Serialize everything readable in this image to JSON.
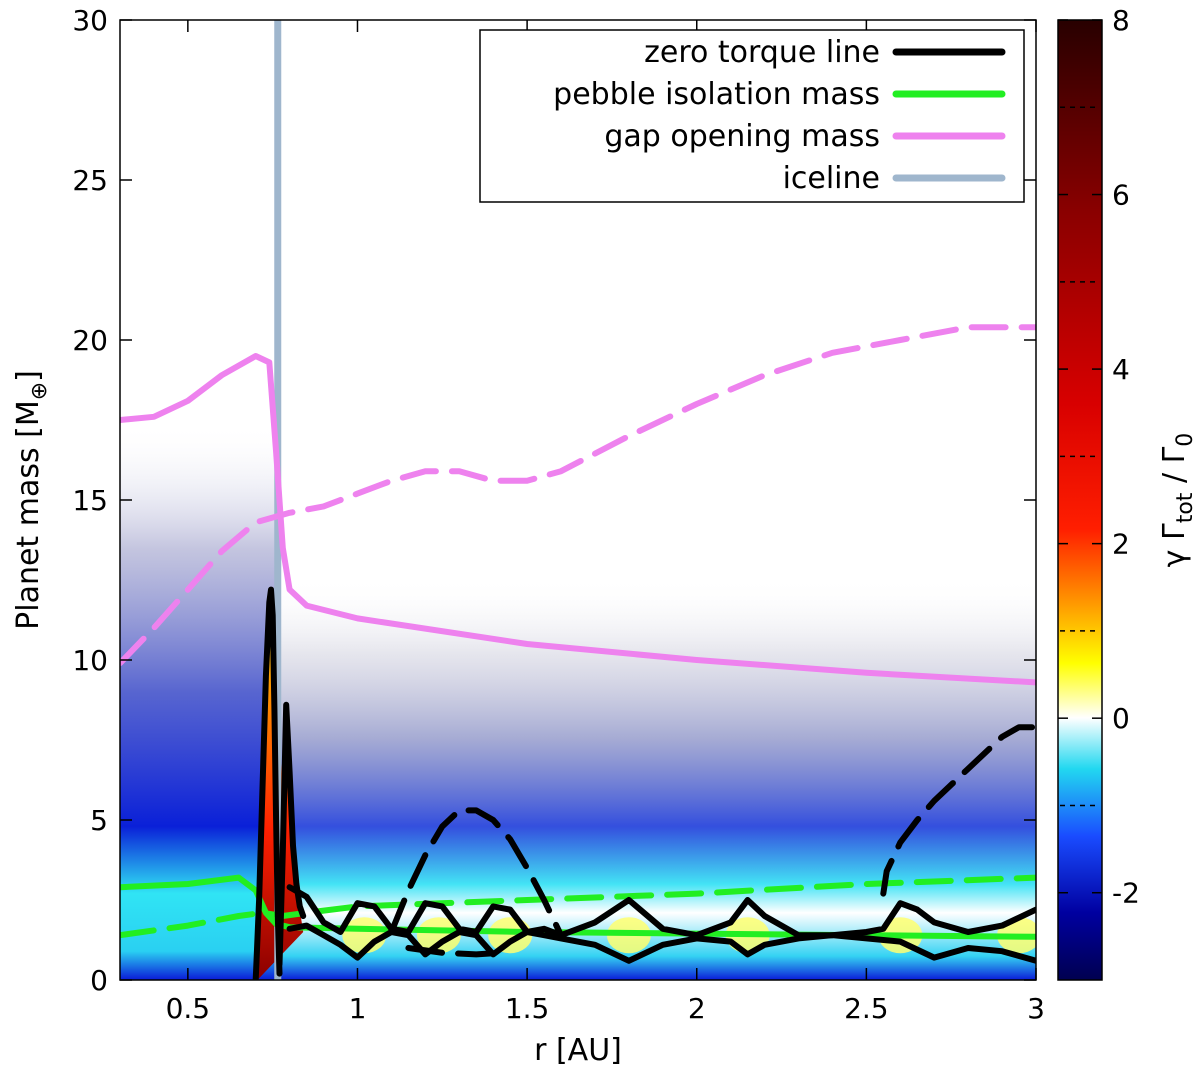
{
  "chart_data": {
    "type": "heatmap",
    "xlabel": "r [AU]",
    "ylabel": "Planet mass [M",
    "ylabel_sub": "⊕",
    "ylabel_end": "]",
    "xlim": [
      0.3,
      3.0
    ],
    "ylim": [
      0,
      30
    ],
    "x_ticks": [
      0.5,
      1,
      1.5,
      2,
      2.5,
      3
    ],
    "x_tick_labels": [
      "0.5",
      "1",
      "1.5",
      "2",
      "2.5",
      "3"
    ],
    "y_ticks": [
      0,
      5,
      10,
      15,
      20,
      25,
      30
    ],
    "y_tick_labels": [
      "0",
      "5",
      "10",
      "15",
      "20",
      "25",
      "30"
    ],
    "colorbar": {
      "label_main": "γ Γ",
      "label_sub1": "tot",
      "label_mid": " / Γ",
      "label_sub2": "0",
      "range": [
        -3,
        8
      ],
      "ticks": [
        -2,
        0,
        2,
        4,
        6,
        8
      ],
      "tick_labels": [
        "-2",
        "0",
        "2",
        "4",
        "6",
        "8"
      ]
    },
    "iceline_r": 0.765,
    "legend": [
      {
        "label": "zero torque line",
        "color": "#000000"
      },
      {
        "label": "pebble isolation mass",
        "color": "#22ee22"
      },
      {
        "label": "gap opening mass",
        "color": "#ee82ee"
      },
      {
        "label": "iceline",
        "color": "#9fb6cd"
      }
    ],
    "series": [
      {
        "name": "gap opening mass (solid)",
        "style": "solid",
        "color": "#ee82ee",
        "x": [
          0.3,
          0.4,
          0.5,
          0.6,
          0.7,
          0.74,
          0.76,
          0.78,
          0.8,
          0.85,
          1.0,
          1.5,
          2.0,
          2.5,
          3.0
        ],
        "y": [
          17.5,
          17.6,
          18.1,
          18.9,
          19.5,
          19.3,
          16.5,
          13.5,
          12.2,
          11.7,
          11.3,
          10.5,
          10.0,
          9.6,
          9.3
        ]
      },
      {
        "name": "gap opening mass (dashed)",
        "style": "dashed",
        "color": "#ee82ee",
        "x": [
          0.3,
          0.4,
          0.5,
          0.6,
          0.7,
          0.8,
          0.9,
          1.0,
          1.1,
          1.2,
          1.3,
          1.4,
          1.5,
          1.6,
          1.8,
          2.0,
          2.2,
          2.4,
          2.6,
          2.8,
          3.0
        ],
        "y": [
          9.9,
          11.0,
          12.2,
          13.4,
          14.3,
          14.6,
          14.8,
          15.2,
          15.6,
          15.9,
          15.9,
          15.6,
          15.6,
          15.9,
          17.0,
          18.0,
          18.9,
          19.6,
          20.0,
          20.4,
          20.4
        ]
      },
      {
        "name": "pebble isolation mass (solid)",
        "style": "solid",
        "color": "#22ee22",
        "x": [
          0.3,
          0.5,
          0.65,
          0.7,
          0.73,
          0.76,
          0.8,
          1.0,
          1.5,
          2.0,
          2.5,
          3.0
        ],
        "y": [
          2.9,
          3.0,
          3.2,
          2.8,
          2.1,
          1.75,
          1.65,
          1.6,
          1.5,
          1.45,
          1.4,
          1.35
        ]
      },
      {
        "name": "pebble isolation mass (dashed)",
        "style": "dashed",
        "color": "#22ee22",
        "x": [
          0.3,
          0.5,
          0.65,
          0.72,
          0.78,
          0.85,
          1.0,
          1.5,
          2.0,
          2.5,
          3.0
        ],
        "y": [
          1.4,
          1.7,
          2.0,
          2.1,
          2.0,
          2.1,
          2.3,
          2.5,
          2.7,
          3.0,
          3.2
        ]
      },
      {
        "name": "zero torque line (peak)",
        "style": "solid",
        "color": "#000000",
        "x": [
          0.7,
          0.71,
          0.72,
          0.73,
          0.74,
          0.745,
          0.75,
          0.755,
          0.76,
          0.765,
          0.77
        ],
        "y": [
          0.0,
          2.5,
          6.0,
          9.5,
          11.8,
          12.2,
          11.4,
          8.5,
          5.0,
          2.0,
          0.2
        ]
      },
      {
        "name": "zero torque line (second peak)",
        "style": "solid",
        "color": "#000000",
        "x": [
          0.77,
          0.78,
          0.79,
          0.8,
          0.81,
          0.82,
          0.83,
          0.84
        ],
        "y": [
          0.5,
          4.0,
          8.6,
          6.5,
          4.2,
          3.0,
          2.3,
          2.0
        ]
      },
      {
        "name": "zero torque line (upper boundary)",
        "style": "solid",
        "color": "#000000",
        "x": [
          0.8,
          0.85,
          0.9,
          0.95,
          1.0,
          1.05,
          1.1,
          1.15,
          1.2,
          1.25,
          1.3,
          1.35,
          1.4,
          1.45,
          1.5,
          1.55,
          1.6,
          1.7,
          1.8,
          1.9,
          2.0,
          2.1,
          2.15,
          2.2,
          2.3,
          2.4,
          2.5,
          2.55,
          2.6,
          2.65,
          2.7,
          2.8,
          2.9,
          3.0
        ],
        "y": [
          2.9,
          2.6,
          1.8,
          1.5,
          2.4,
          2.3,
          1.6,
          1.5,
          2.4,
          2.3,
          1.6,
          1.5,
          2.3,
          2.2,
          1.5,
          1.6,
          1.4,
          1.8,
          2.5,
          1.6,
          1.4,
          1.8,
          2.5,
          2.0,
          1.4,
          1.4,
          1.5,
          1.6,
          2.4,
          2.2,
          1.8,
          1.5,
          1.7,
          2.2
        ]
      },
      {
        "name": "zero torque line (lower boundary)",
        "style": "solid",
        "color": "#000000",
        "x": [
          0.8,
          0.85,
          0.9,
          0.95,
          1.0,
          1.05,
          1.1,
          1.15,
          1.2,
          1.25,
          1.3,
          1.35,
          1.4,
          1.45,
          1.5,
          1.55,
          1.6,
          1.7,
          1.8,
          1.9,
          2.0,
          2.1,
          2.15,
          2.2,
          2.3,
          2.4,
          2.5,
          2.6,
          2.7,
          2.8,
          2.9,
          3.0
        ],
        "y": [
          1.6,
          1.7,
          1.4,
          1.1,
          0.7,
          1.2,
          1.5,
          1.4,
          0.8,
          1.2,
          1.5,
          1.4,
          0.8,
          1.2,
          1.5,
          1.4,
          1.3,
          1.1,
          0.6,
          1.1,
          1.3,
          1.2,
          0.8,
          1.1,
          1.3,
          1.4,
          1.3,
          1.2,
          0.7,
          1.0,
          0.9,
          0.6
        ]
      },
      {
        "name": "zero torque line (dashed arc)",
        "style": "dashed",
        "color": "#000000",
        "x": [
          1.1,
          1.15,
          1.2,
          1.25,
          1.3,
          1.35,
          1.4,
          1.45,
          1.5,
          1.55,
          1.6
        ],
        "y": [
          1.5,
          2.8,
          3.9,
          4.8,
          5.3,
          5.3,
          5.0,
          4.4,
          3.5,
          2.5,
          1.4
        ]
      },
      {
        "name": "zero torque line (dashed lower)",
        "style": "dashed",
        "color": "#000000",
        "x": [
          1.15,
          1.25,
          1.35,
          1.42
        ],
        "y": [
          1.0,
          0.85,
          0.8,
          0.85
        ]
      },
      {
        "name": "zero torque line (dashed rise)",
        "style": "dashed",
        "color": "#000000",
        "x": [
          2.55,
          2.56,
          2.6,
          2.65,
          2.7,
          2.8,
          2.9,
          2.95,
          3.0
        ],
        "y": [
          2.7,
          3.4,
          4.3,
          5.0,
          5.6,
          6.6,
          7.6,
          7.9,
          7.9
        ]
      }
    ]
  }
}
